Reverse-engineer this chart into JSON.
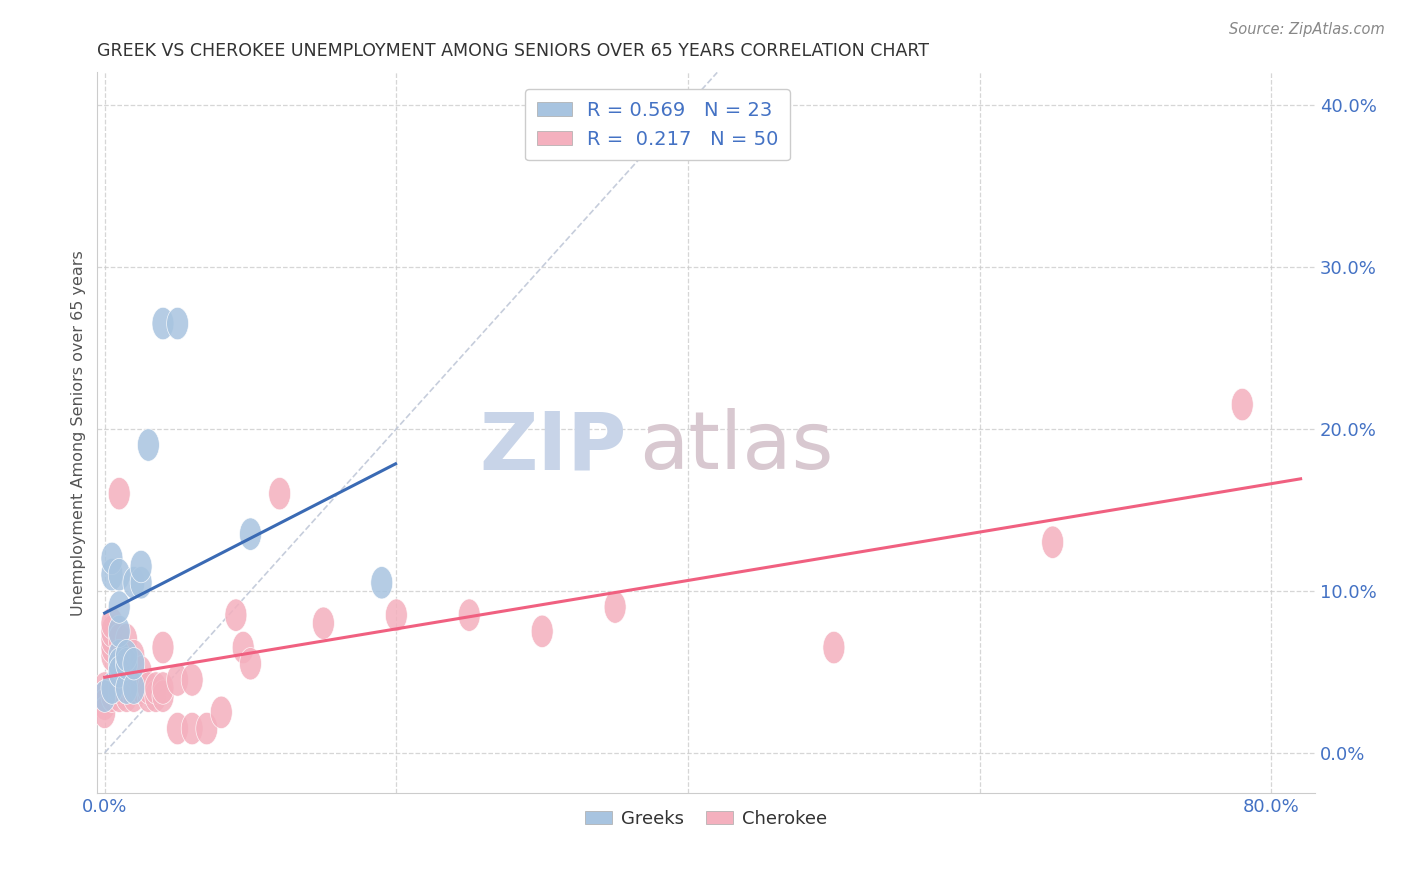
{
  "title": "GREEK VS CHEROKEE UNEMPLOYMENT AMONG SENIORS OVER 65 YEARS CORRELATION CHART",
  "source": "Source: ZipAtlas.com",
  "ylabel": "Unemployment Among Seniors over 65 years",
  "xlim": [
    -0.005,
    0.83
  ],
  "ylim": [
    -0.025,
    0.42
  ],
  "greek_R": "0.569",
  "greek_N": "23",
  "cherokee_R": "0.217",
  "cherokee_N": "50",
  "greek_color": "#a8c4e0",
  "cherokee_color": "#f4b0be",
  "greek_line_color": "#3a6ab4",
  "cherokee_line_color": "#f06080",
  "diag_line_color": "#c0c8d8",
  "watermark_zip_color": "#c8d4e8",
  "watermark_atlas_color": "#d8c8d0",
  "title_color": "#333333",
  "axis_label_color": "#4472c4",
  "ylabel_color": "#555555",
  "xtick_positions": [
    0.0,
    0.2,
    0.4,
    0.6,
    0.8
  ],
  "xtick_labels": [
    "0.0%",
    "",
    "",
    "",
    "80.0%"
  ],
  "ytick_positions": [
    0.0,
    0.1,
    0.2,
    0.3,
    0.4
  ],
  "ytick_labels": [
    "0.0%",
    "10.0%",
    "20.0%",
    "30.0%",
    "40.0%"
  ],
  "greek_points": [
    [
      0.0,
      0.035
    ],
    [
      0.005,
      0.04
    ],
    [
      0.005,
      0.11
    ],
    [
      0.005,
      0.12
    ],
    [
      0.01,
      0.06
    ],
    [
      0.01,
      0.055
    ],
    [
      0.01,
      0.05
    ],
    [
      0.01,
      0.075
    ],
    [
      0.01,
      0.09
    ],
    [
      0.01,
      0.11
    ],
    [
      0.015,
      0.04
    ],
    [
      0.015,
      0.055
    ],
    [
      0.015,
      0.06
    ],
    [
      0.02,
      0.04
    ],
    [
      0.02,
      0.055
    ],
    [
      0.02,
      0.105
    ],
    [
      0.025,
      0.105
    ],
    [
      0.025,
      0.115
    ],
    [
      0.03,
      0.19
    ],
    [
      0.04,
      0.265
    ],
    [
      0.05,
      0.265
    ],
    [
      0.1,
      0.135
    ],
    [
      0.19,
      0.105
    ]
  ],
  "cherokee_points": [
    [
      0.0,
      0.04
    ],
    [
      0.0,
      0.035
    ],
    [
      0.0,
      0.03
    ],
    [
      0.0,
      0.025
    ],
    [
      0.005,
      0.035
    ],
    [
      0.005,
      0.06
    ],
    [
      0.005,
      0.065
    ],
    [
      0.005,
      0.07
    ],
    [
      0.005,
      0.075
    ],
    [
      0.005,
      0.08
    ],
    [
      0.01,
      0.035
    ],
    [
      0.01,
      0.04
    ],
    [
      0.01,
      0.05
    ],
    [
      0.01,
      0.055
    ],
    [
      0.01,
      0.07
    ],
    [
      0.01,
      0.16
    ],
    [
      0.015,
      0.035
    ],
    [
      0.015,
      0.04
    ],
    [
      0.015,
      0.055
    ],
    [
      0.015,
      0.07
    ],
    [
      0.02,
      0.035
    ],
    [
      0.02,
      0.05
    ],
    [
      0.02,
      0.06
    ],
    [
      0.025,
      0.04
    ],
    [
      0.025,
      0.05
    ],
    [
      0.03,
      0.035
    ],
    [
      0.03,
      0.04
    ],
    [
      0.035,
      0.035
    ],
    [
      0.035,
      0.04
    ],
    [
      0.04,
      0.035
    ],
    [
      0.04,
      0.04
    ],
    [
      0.04,
      0.065
    ],
    [
      0.05,
      0.045
    ],
    [
      0.05,
      0.015
    ],
    [
      0.06,
      0.015
    ],
    [
      0.06,
      0.045
    ],
    [
      0.07,
      0.015
    ],
    [
      0.08,
      0.025
    ],
    [
      0.09,
      0.085
    ],
    [
      0.095,
      0.065
    ],
    [
      0.1,
      0.055
    ],
    [
      0.12,
      0.16
    ],
    [
      0.15,
      0.08
    ],
    [
      0.2,
      0.085
    ],
    [
      0.25,
      0.085
    ],
    [
      0.3,
      0.075
    ],
    [
      0.35,
      0.09
    ],
    [
      0.5,
      0.065
    ],
    [
      0.65,
      0.13
    ],
    [
      0.78,
      0.215
    ]
  ]
}
